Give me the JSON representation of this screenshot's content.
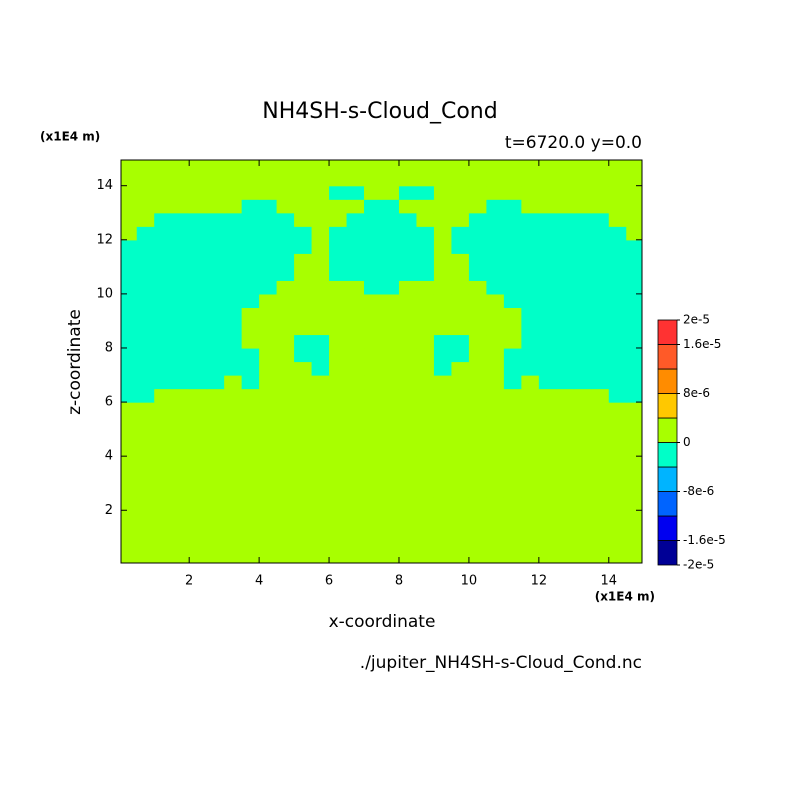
{
  "chart_data": {
    "type": "contour",
    "title": "NH4SH-s-Cloud_Cond",
    "subtitle": "t=6720.0 y=0.0",
    "x_label": "x-coordinate",
    "y_label": "z-coordinate",
    "x_unit": "(x1E4 m)",
    "y_unit": "(x1E4 m)",
    "source": "./jupiter_NH4SH-s-Cloud_Cond.nc",
    "xlim": [
      0.05,
      14.95
    ],
    "ylim": [
      0.05,
      14.95
    ],
    "xticks": [
      2,
      4,
      6,
      8,
      10,
      12,
      14
    ],
    "yticks": [
      2,
      4,
      6,
      8,
      10,
      12,
      14
    ],
    "x": [
      0.25,
      0.75,
      1.25,
      1.75,
      2.25,
      2.75,
      3.25,
      3.75,
      4.25,
      4.75,
      5.25,
      5.75,
      6.25,
      6.75,
      7.25,
      7.75,
      8.25,
      8.75,
      9.25,
      9.75,
      10.25,
      10.75,
      11.25,
      11.75,
      12.25,
      12.75,
      13.25,
      13.75,
      14.25,
      14.75
    ],
    "y": [
      0.25,
      0.75,
      1.25,
      1.75,
      2.25,
      2.75,
      3.25,
      3.75,
      4.25,
      4.75,
      5.25,
      5.75,
      6.25,
      6.75,
      7.25,
      7.75,
      8.25,
      8.75,
      9.25,
      9.75,
      10.25,
      10.75,
      11.25,
      11.75,
      12.25,
      12.75,
      13.25,
      13.75,
      14.25,
      14.75
    ],
    "values": [
      [
        0,
        0,
        0,
        0,
        0,
        0,
        0,
        0,
        0,
        0,
        0,
        0,
        0,
        0,
        0,
        0,
        0,
        0,
        0,
        0,
        0,
        0,
        0,
        0,
        0,
        0,
        0,
        0,
        0,
        0
      ],
      [
        0,
        0,
        0,
        0,
        0,
        0,
        0,
        0,
        0,
        0,
        0,
        0,
        0,
        0,
        0,
        0,
        0,
        0,
        0,
        0,
        0,
        0,
        0,
        0,
        0,
        0,
        0,
        0,
        0,
        0
      ],
      [
        0,
        0,
        0,
        0,
        0,
        0,
        0,
        0,
        0,
        0,
        0,
        0,
        0,
        0,
        0,
        0,
        0,
        0,
        0,
        0,
        0,
        0,
        0,
        0,
        0,
        0,
        0,
        0,
        0,
        0
      ],
      [
        0,
        0,
        0,
        0,
        0,
        0,
        0,
        0,
        0,
        0,
        0,
        0,
        0,
        0,
        0,
        0,
        0,
        0,
        0,
        0,
        0,
        0,
        0,
        0,
        0,
        0,
        0,
        0,
        0,
        0
      ],
      [
        0,
        0,
        0,
        0,
        0,
        0,
        0,
        0,
        0,
        0,
        0,
        0,
        0,
        0,
        0,
        0,
        0,
        0,
        0,
        0,
        0,
        0,
        0,
        0,
        0,
        0,
        0,
        0,
        0,
        0
      ],
      [
        0,
        0,
        0,
        0,
        0,
        0,
        0,
        0,
        0,
        0,
        0,
        0,
        0,
        0,
        0,
        0,
        0,
        0,
        0,
        0,
        0,
        0,
        0,
        0,
        0,
        0,
        0,
        0,
        0,
        0
      ],
      [
        0,
        0,
        0,
        0,
        0,
        0,
        0,
        0,
        0,
        0,
        0,
        0,
        0,
        0,
        0,
        0,
        0,
        0,
        0,
        0,
        0,
        0,
        0,
        0,
        0,
        0,
        0,
        0,
        0,
        0
      ],
      [
        0,
        0,
        0,
        0,
        0,
        0,
        0,
        0,
        0,
        0,
        0,
        0,
        0,
        0,
        0,
        0,
        0,
        0,
        0,
        0,
        0,
        0,
        0,
        0,
        0,
        0,
        0,
        0,
        0,
        0
      ],
      [
        0,
        0,
        0,
        0,
        0,
        0,
        0,
        0,
        0,
        0,
        0,
        0,
        0,
        0,
        0,
        0,
        0,
        0,
        0,
        0,
        0,
        0,
        0,
        0,
        0,
        0,
        0,
        0,
        0,
        0
      ],
      [
        0,
        0,
        0,
        0,
        0,
        0,
        0,
        0,
        0,
        0,
        0,
        0,
        0,
        0,
        0,
        0,
        0,
        0,
        0,
        0,
        0,
        0,
        0,
        0,
        0,
        0,
        0,
        0,
        0,
        0
      ],
      [
        0,
        0,
        0,
        0,
        0,
        0,
        0,
        0,
        0,
        0,
        0,
        0,
        0,
        0,
        0,
        0,
        0,
        0,
        0,
        0,
        0,
        0,
        0,
        0,
        0,
        0,
        0,
        0,
        0,
        0
      ],
      [
        0,
        0,
        0,
        0,
        0,
        0,
        0,
        0,
        0,
        0,
        0,
        0,
        0,
        0,
        0,
        0,
        0,
        0,
        0,
        0,
        0,
        0,
        0,
        0,
        0,
        0,
        0,
        0,
        0,
        0
      ],
      [
        -2e-06,
        -2e-06,
        0,
        0,
        0,
        0,
        0,
        0,
        0,
        0,
        0,
        0,
        0,
        0,
        0,
        0,
        0,
        0,
        0,
        0,
        0,
        0,
        0,
        0,
        0,
        0,
        0,
        0,
        -2e-06,
        -2e-06
      ],
      [
        -2e-06,
        -2e-06,
        -2e-06,
        -2e-06,
        -2e-06,
        -2e-06,
        0,
        -2e-06,
        0,
        0,
        0,
        0,
        0,
        0,
        0,
        0,
        0,
        0,
        0,
        0,
        0,
        0,
        -2e-06,
        0,
        -2e-06,
        -2e-06,
        -2e-06,
        -2e-06,
        -2e-06,
        -2e-06
      ],
      [
        -2e-06,
        -2e-06,
        -2e-06,
        -2e-06,
        -2e-06,
        -2e-06,
        -2e-06,
        -2e-06,
        0,
        0,
        0,
        -2e-06,
        0,
        0,
        0,
        0,
        0,
        0,
        -2e-06,
        0,
        0,
        0,
        -2e-06,
        -2e-06,
        -2e-06,
        -2e-06,
        -2e-06,
        -2e-06,
        -2e-06,
        -2e-06
      ],
      [
        -2e-06,
        -2e-06,
        -2e-06,
        -2e-06,
        -2e-06,
        -2e-06,
        -2e-06,
        -2e-06,
        0,
        0,
        -2e-06,
        -2e-06,
        0,
        0,
        0,
        0,
        0,
        0,
        -2e-06,
        -2e-06,
        0,
        0,
        -2e-06,
        -2e-06,
        -2e-06,
        -2e-06,
        -2e-06,
        -2e-06,
        -2e-06,
        -2e-06
      ],
      [
        -2e-06,
        -2e-06,
        -2e-06,
        -2e-06,
        -2e-06,
        -2e-06,
        -2e-06,
        0,
        0,
        0,
        -2e-06,
        -2e-06,
        0,
        0,
        0,
        0,
        0,
        0,
        -2e-06,
        -2e-06,
        0,
        0,
        0,
        -2e-06,
        -2e-06,
        -2e-06,
        -2e-06,
        -2e-06,
        -2e-06,
        -2e-06
      ],
      [
        -2e-06,
        -2e-06,
        -2e-06,
        -2e-06,
        -2e-06,
        -2e-06,
        -2e-06,
        0,
        0,
        0,
        0,
        0,
        0,
        0,
        0,
        0,
        0,
        0,
        0,
        0,
        0,
        0,
        0,
        -2e-06,
        -2e-06,
        -2e-06,
        -2e-06,
        -2e-06,
        -2e-06,
        -2e-06
      ],
      [
        -2e-06,
        -2e-06,
        -2e-06,
        -2e-06,
        -2e-06,
        -2e-06,
        -2e-06,
        0,
        0,
        0,
        0,
        0,
        0,
        0,
        0,
        0,
        0,
        0,
        0,
        0,
        0,
        0,
        0,
        -2e-06,
        -2e-06,
        -2e-06,
        -2e-06,
        -2e-06,
        -2e-06,
        -2e-06
      ],
      [
        -2e-06,
        -2e-06,
        -2e-06,
        -2e-06,
        -2e-06,
        -2e-06,
        -2e-06,
        -2e-06,
        0,
        0,
        0,
        0,
        0,
        0,
        0,
        0,
        0,
        0,
        0,
        0,
        0,
        0,
        -2e-06,
        -2e-06,
        -2e-06,
        -2e-06,
        -2e-06,
        -2e-06,
        -2e-06,
        -2e-06
      ],
      [
        -2e-06,
        -2e-06,
        -2e-06,
        -2e-06,
        -2e-06,
        -2e-06,
        -2e-06,
        -2e-06,
        -2e-06,
        0,
        0,
        0,
        0,
        0,
        -2e-06,
        -2e-06,
        0,
        0,
        0,
        0,
        0,
        -2e-06,
        -2e-06,
        -2e-06,
        -2e-06,
        -2e-06,
        -2e-06,
        -2e-06,
        -2e-06,
        -2e-06
      ],
      [
        -2e-06,
        -2e-06,
        -2e-06,
        -2e-06,
        -2e-06,
        -2e-06,
        -2e-06,
        -2e-06,
        -2e-06,
        -2e-06,
        0,
        0,
        -2e-06,
        -2e-06,
        -2e-06,
        -2e-06,
        -2e-06,
        -2e-06,
        0,
        0,
        -2e-06,
        -2e-06,
        -2e-06,
        -2e-06,
        -2e-06,
        -2e-06,
        -2e-06,
        -2e-06,
        -2e-06,
        -2e-06
      ],
      [
        -2e-06,
        -2e-06,
        -2e-06,
        -2e-06,
        -2e-06,
        -2e-06,
        -2e-06,
        -2e-06,
        -2e-06,
        -2e-06,
        0,
        0,
        -2e-06,
        -2e-06,
        -2e-06,
        -2e-06,
        -2e-06,
        -2e-06,
        0,
        0,
        -2e-06,
        -2e-06,
        -2e-06,
        -2e-06,
        -2e-06,
        -2e-06,
        -2e-06,
        -2e-06,
        -2e-06,
        -2e-06
      ],
      [
        -2e-06,
        -2e-06,
        -2e-06,
        -2e-06,
        -2e-06,
        -2e-06,
        -2e-06,
        -2e-06,
        -2e-06,
        -2e-06,
        -2e-06,
        0,
        -2e-06,
        -2e-06,
        -2e-06,
        -2e-06,
        -2e-06,
        -2e-06,
        0,
        -2e-06,
        -2e-06,
        -2e-06,
        -2e-06,
        -2e-06,
        -2e-06,
        -2e-06,
        -2e-06,
        -2e-06,
        -2e-06,
        -2e-06
      ],
      [
        0,
        -2e-06,
        -2e-06,
        -2e-06,
        -2e-06,
        -2e-06,
        -2e-06,
        -2e-06,
        -2e-06,
        -2e-06,
        -2e-06,
        0,
        -2e-06,
        -2e-06,
        -2e-06,
        -2e-06,
        -2e-06,
        -2e-06,
        0,
        -2e-06,
        -2e-06,
        -2e-06,
        -2e-06,
        -2e-06,
        -2e-06,
        -2e-06,
        -2e-06,
        -2e-06,
        -2e-06,
        0
      ],
      [
        0,
        0,
        -2e-06,
        -2e-06,
        -2e-06,
        -2e-06,
        -2e-06,
        -2e-06,
        -2e-06,
        -2e-06,
        0,
        0,
        0,
        -2e-06,
        -2e-06,
        -2e-06,
        -2e-06,
        0,
        0,
        0,
        -2e-06,
        -2e-06,
        -2e-06,
        -2e-06,
        -2e-06,
        -2e-06,
        -2e-06,
        -2e-06,
        0,
        0
      ],
      [
        0,
        0,
        0,
        0,
        0,
        0,
        0,
        -2e-06,
        -2e-06,
        0,
        0,
        0,
        0,
        0,
        -2e-06,
        -2e-06,
        0,
        0,
        0,
        0,
        0,
        -2e-06,
        -2e-06,
        0,
        0,
        0,
        0,
        0,
        0,
        0
      ],
      [
        0,
        0,
        0,
        0,
        0,
        0,
        0,
        0,
        0,
        0,
        0,
        0,
        -2e-06,
        -2e-06,
        0,
        0,
        -2e-06,
        -2e-06,
        0,
        0,
        0,
        0,
        0,
        0,
        0,
        0,
        0,
        0,
        0,
        0
      ],
      [
        0,
        0,
        0,
        0,
        0,
        0,
        0,
        0,
        0,
        0,
        0,
        0,
        0,
        0,
        0,
        0,
        0,
        0,
        0,
        0,
        0,
        0,
        0,
        0,
        0,
        0,
        0,
        0,
        0,
        0
      ],
      [
        0,
        0,
        0,
        0,
        0,
        0,
        0,
        0,
        0,
        0,
        0,
        0,
        0,
        0,
        0,
        0,
        0,
        0,
        0,
        0,
        0,
        0,
        0,
        0,
        0,
        0,
        0,
        0,
        0,
        0
      ]
    ],
    "colorbar": {
      "levels": [
        -2e-05,
        -1.6e-05,
        -1.2e-05,
        -8e-06,
        -4e-06,
        0,
        4e-06,
        8e-06,
        1.2e-05,
        1.6e-05,
        2e-05
      ],
      "colors": [
        "#000096",
        "#0000f0",
        "#0064ff",
        "#00b4ff",
        "#00ffc8",
        "#a8ff00",
        "#ffc800",
        "#ff8c00",
        "#ff5a28",
        "#ff3232"
      ],
      "ticks": [
        {
          "value": -2e-05,
          "label": "-2e-5"
        },
        {
          "value": -1.6e-05,
          "label": "-1.6e-5"
        },
        {
          "value": -8e-06,
          "label": "-8e-6"
        },
        0,
        {
          "value": 8e-06,
          "label": "8e-6"
        },
        {
          "value": 1.6e-05,
          "label": "1.6e-5"
        },
        {
          "value": 2e-05,
          "label": "2e-5"
        }
      ]
    }
  }
}
